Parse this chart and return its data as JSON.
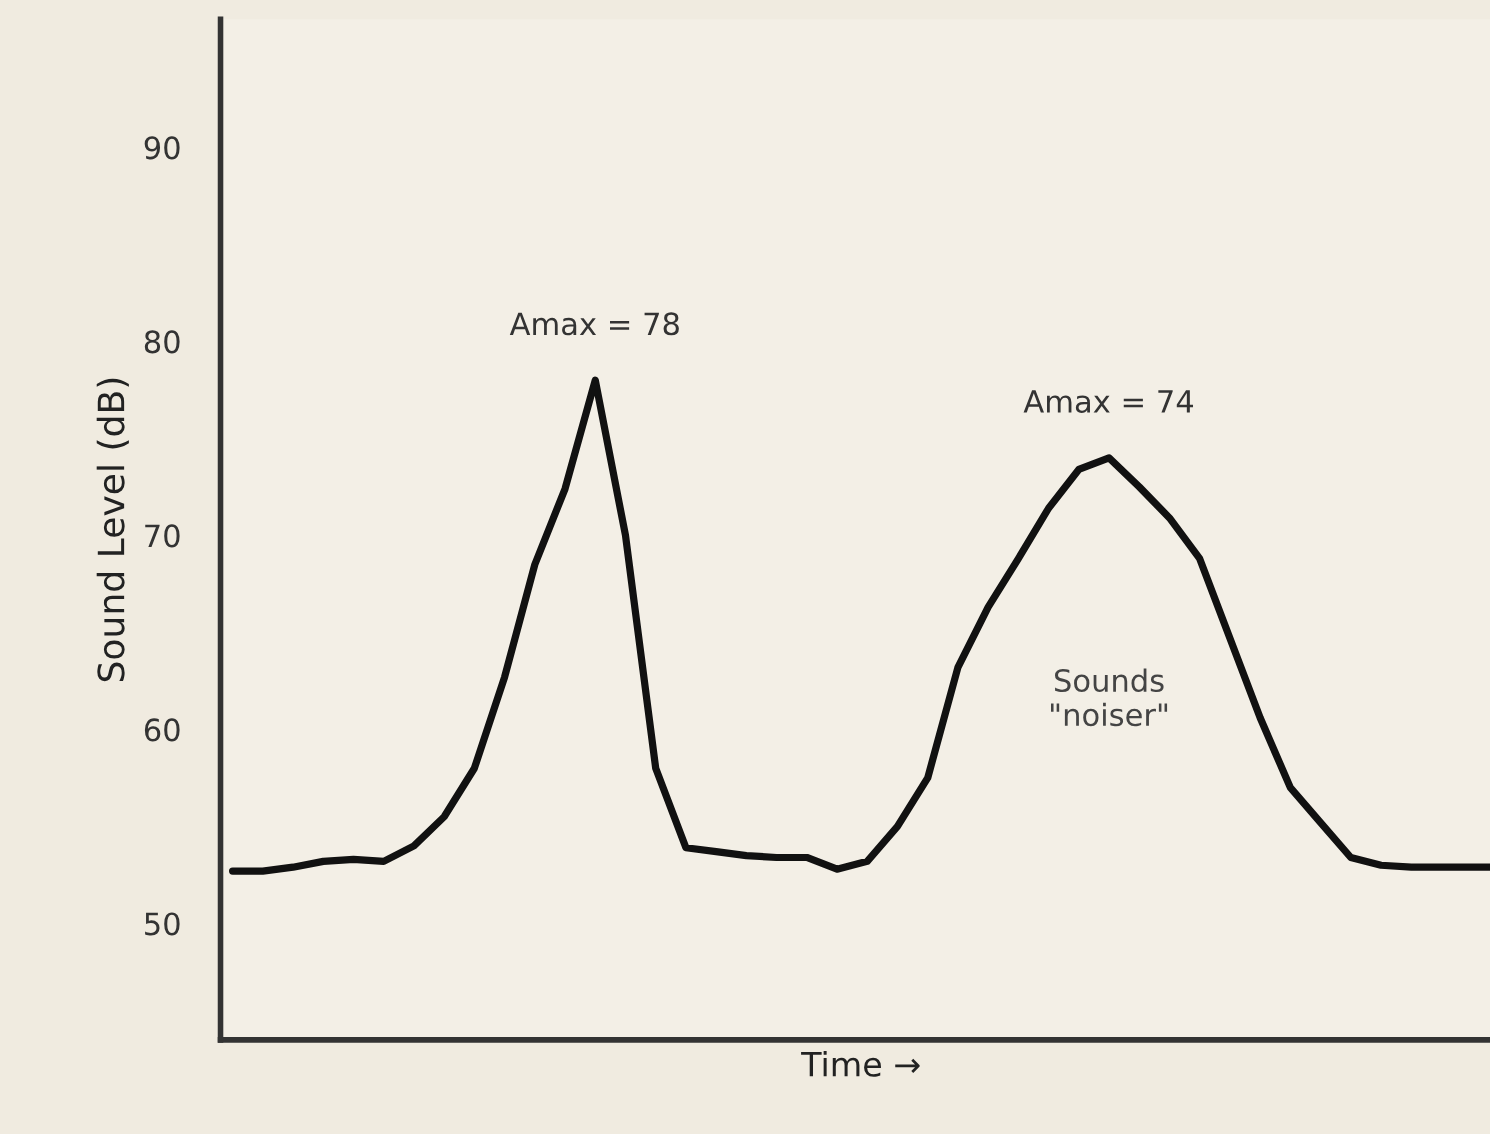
{
  "chart_data": {
    "type": "line",
    "ylabel": "Sound Level (dB)",
    "xlabel": "Time →",
    "categories": [
      null,
      null,
      null,
      null,
      null,
      null,
      null,
      null,
      null,
      null,
      null,
      null,
      null,
      null,
      null,
      null,
      null,
      null,
      null,
      null,
      null,
      null,
      null,
      null,
      null,
      null,
      null,
      null,
      null,
      null,
      null,
      null,
      null,
      null,
      null,
      null,
      null,
      null,
      null,
      null,
      null,
      null,
      null
    ],
    "series": [
      {
        "color": "#111111",
        "values": [
          52.7,
          52.7,
          52.9,
          53.2,
          53.3,
          53.2,
          54.0,
          55.5,
          58,
          62.7,
          68.5,
          72.4,
          78,
          70,
          58,
          53.9,
          53.7,
          53.5,
          53.4,
          53.4,
          52.8,
          53.2,
          55,
          57.5,
          63.2,
          66.3,
          68.8,
          71.4,
          73.4,
          74,
          72.5,
          70.9,
          68.8,
          64.7,
          60.6,
          57,
          55.2,
          53.4,
          53,
          52.9,
          52.9,
          52.9,
          52.9
        ]
      }
    ],
    "ylim": [
      44,
      96.6
    ],
    "yticks": [
      50,
      60,
      70,
      80,
      90
    ],
    "tick_labels": "y",
    "grid": false,
    "legend": false,
    "marker": "none",
    "line_style": "solid",
    "annotations": [
      {
        "text": "Amax = 78",
        "y": 78
      },
      {
        "text": "Amax = 74",
        "y": 74
      },
      "Sounds\n\"noiser\""
    ]
  }
}
